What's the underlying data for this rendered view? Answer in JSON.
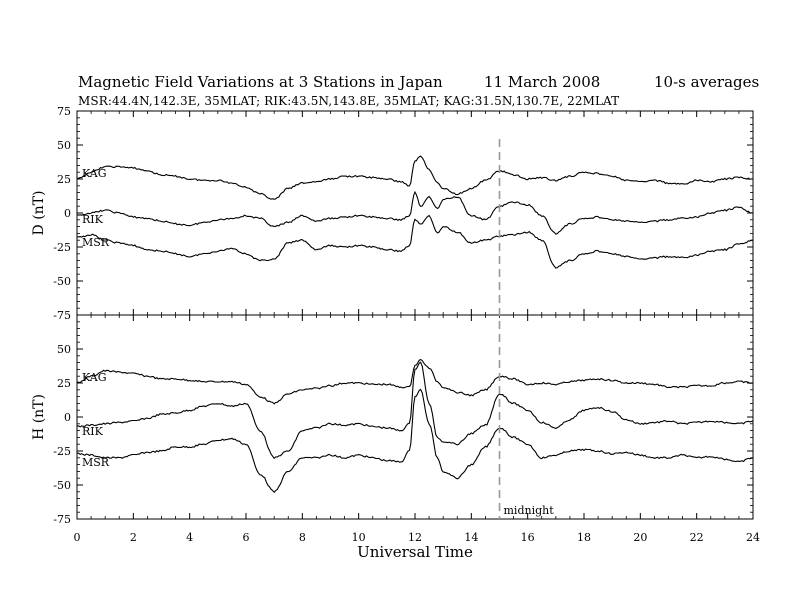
{
  "header": {
    "title": "Magnetic Field Variations at 3 Stations in Japan",
    "date": "11 March   2008",
    "averaging": "10-s averages",
    "subtitle": "MSR:44.4N,142.3E, 35MLAT;   RIK:43.5N,143.8E, 35MLAT;   KAG:31.5N,130.7E, 22MLAT"
  },
  "chart_data": {
    "type": "line",
    "xlabel": "Universal Time",
    "xlim": [
      0,
      24
    ],
    "x_ticks": [
      0,
      2,
      4,
      6,
      8,
      10,
      12,
      14,
      16,
      18,
      20,
      22,
      24
    ],
    "annotation": {
      "x": 15,
      "text": "midnight",
      "style": "dashed"
    },
    "panels": [
      {
        "name": "D",
        "ylabel": "D (nT)",
        "ylim": [
          -75,
          75
        ],
        "y_ticks": [
          75,
          50,
          25,
          0,
          -25,
          -50,
          -75
        ],
        "series": [
          {
            "name": "KAG",
            "x": [
              0,
              0.5,
              1,
              1.5,
              2,
              2.5,
              3,
              3.5,
              4,
              4.5,
              5,
              5.5,
              6,
              6.5,
              7,
              7.5,
              8,
              8.5,
              9,
              9.5,
              10,
              10.5,
              11,
              11.5,
              11.8,
              12,
              12.2,
              12.5,
              12.8,
              13,
              13.5,
              14,
              14.5,
              15,
              15.5,
              16,
              16.5,
              17,
              17.5,
              18,
              18.5,
              19,
              19.5,
              20,
              20.5,
              21,
              21.5,
              22,
              22.5,
              23,
              23.5,
              24
            ],
            "y": [
              25,
              30,
              34,
              34,
              33,
              31,
              28,
              27,
              25,
              24,
              24,
              22,
              19,
              14,
              10,
              18,
              22,
              23,
              25,
              27,
              27,
              26,
              25,
              23,
              20,
              38,
              42,
              32,
              22,
              18,
              14,
              18,
              24,
              31,
              28,
              25,
              26,
              24,
              27,
              30,
              29,
              27,
              24,
              23,
              24,
              22,
              21,
              24,
              23,
              25,
              26,
              25
            ]
          },
          {
            "name": "RIK",
            "x": [
              0,
              0.5,
              1,
              1.5,
              2,
              2.5,
              3,
              3.5,
              4,
              4.5,
              5,
              5.5,
              6,
              6.5,
              7,
              7.5,
              8,
              8.5,
              9,
              9.5,
              10,
              10.5,
              11,
              11.5,
              11.8,
              12,
              12.2,
              12.5,
              12.8,
              13,
              13.5,
              14,
              14.5,
              15,
              15.5,
              16,
              16.5,
              17,
              17.5,
              18,
              18.5,
              19,
              19.5,
              20,
              20.5,
              21,
              21.5,
              22,
              22.5,
              23,
              23.5,
              24
            ],
            "y": [
              -2,
              0,
              2,
              0,
              -3,
              -4,
              -6,
              -8,
              -9,
              -7,
              -5,
              -4,
              -2,
              -4,
              -10,
              -7,
              -2,
              -6,
              -4,
              -3,
              -2,
              -3,
              -4,
              -5,
              -2,
              15,
              5,
              12,
              3,
              10,
              12,
              -2,
              -5,
              5,
              8,
              6,
              -2,
              -15,
              -8,
              -4,
              -3,
              -5,
              -6,
              -7,
              -6,
              -5,
              -4,
              -3,
              0,
              2,
              4,
              0
            ]
          },
          {
            "name": "MSR",
            "x": [
              0,
              0.5,
              1,
              1.5,
              2,
              2.5,
              3,
              3.5,
              4,
              4.5,
              5,
              5.5,
              6,
              6.5,
              7,
              7.5,
              8,
              8.5,
              9,
              9.5,
              10,
              10.5,
              11,
              11.5,
              11.8,
              12,
              12.2,
              12.5,
              12.8,
              13,
              13.5,
              14,
              14.5,
              15,
              15.5,
              16,
              16.5,
              17,
              17.5,
              18,
              18.5,
              19,
              19.5,
              20,
              20.5,
              21,
              21.5,
              22,
              22.5,
              23,
              23.5,
              24
            ],
            "y": [
              -18,
              -16,
              -20,
              -22,
              -24,
              -27,
              -28,
              -30,
              -32,
              -30,
              -28,
              -26,
              -30,
              -35,
              -34,
              -22,
              -20,
              -27,
              -24,
              -25,
              -24,
              -25,
              -27,
              -28,
              -24,
              -5,
              -8,
              -2,
              -15,
              -10,
              -14,
              -22,
              -20,
              -17,
              -16,
              -14,
              -20,
              -40,
              -35,
              -30,
              -28,
              -30,
              -32,
              -34,
              -33,
              -32,
              -33,
              -31,
              -28,
              -27,
              -23,
              -20
            ]
          }
        ]
      },
      {
        "name": "H",
        "ylabel": "H (nT)",
        "ylim": [
          -75,
          75
        ],
        "y_ticks": [
          75,
          50,
          25,
          0,
          -25,
          -50,
          -75
        ],
        "series": [
          {
            "name": "KAG",
            "x": [
              0,
              0.5,
              1,
              1.5,
              2,
              2.5,
              3,
              3.5,
              4,
              4.5,
              5,
              5.5,
              6,
              6.5,
              7,
              7.5,
              8,
              8.5,
              9,
              9.5,
              10,
              10.5,
              11,
              11.5,
              11.8,
              12,
              12.2,
              12.5,
              12.8,
              13,
              13.5,
              14,
              14.5,
              15,
              15.5,
              16,
              16.5,
              17,
              17.5,
              18,
              18.5,
              19,
              19.5,
              20,
              20.5,
              21,
              21.5,
              22,
              22.5,
              23,
              23.5,
              24
            ],
            "y": [
              25,
              30,
              34,
              33,
              32,
              30,
              28,
              28,
              27,
              26,
              26,
              26,
              24,
              15,
              10,
              17,
              20,
              21,
              23,
              25,
              25,
              24,
              24,
              22,
              22,
              38,
              42,
              36,
              26,
              22,
              18,
              16,
              20,
              30,
              28,
              24,
              25,
              24,
              26,
              27,
              28,
              27,
              25,
              25,
              24,
              22,
              22,
              23,
              23,
              25,
              26,
              25
            ]
          },
          {
            "name": "RIK",
            "x": [
              0,
              0.5,
              1,
              1.5,
              2,
              2.5,
              3,
              3.5,
              4,
              4.5,
              5,
              5.5,
              6,
              6.5,
              7,
              7.5,
              8,
              8.5,
              9,
              9.5,
              10,
              10.5,
              11,
              11.5,
              11.8,
              12,
              12.2,
              12.5,
              12.8,
              13,
              13.5,
              14,
              14.5,
              15,
              15.5,
              16,
              16.5,
              17,
              17.5,
              18,
              18.5,
              19,
              19.5,
              20,
              20.5,
              21,
              21.5,
              22,
              22.5,
              23,
              23.5,
              24
            ],
            "y": [
              -7,
              -6,
              -5,
              -4,
              -3,
              -1,
              2,
              3,
              5,
              8,
              10,
              8,
              10,
              -10,
              -30,
              -25,
              -10,
              -8,
              -5,
              -6,
              -5,
              -7,
              -8,
              -10,
              -5,
              35,
              40,
              10,
              -15,
              -18,
              -20,
              -12,
              -6,
              17,
              10,
              5,
              -4,
              -8,
              -2,
              5,
              7,
              4,
              -2,
              -5,
              -4,
              -3,
              -5,
              -4,
              -3,
              -4,
              -5,
              -3
            ]
          },
          {
            "name": "MSR",
            "x": [
              0,
              0.5,
              1,
              1.5,
              2,
              2.5,
              3,
              3.5,
              4,
              4.5,
              5,
              5.5,
              6,
              6.5,
              7,
              7.5,
              8,
              8.5,
              9,
              9.5,
              10,
              10.5,
              11,
              11.5,
              11.8,
              12,
              12.2,
              12.5,
              12.8,
              13,
              13.5,
              14,
              14.5,
              15,
              15.5,
              16,
              16.5,
              17,
              17.5,
              18,
              18.5,
              19,
              19.5,
              20,
              20.5,
              21,
              21.5,
              22,
              22.5,
              23,
              23.5,
              24
            ],
            "y": [
              -27,
              -28,
              -30,
              -30,
              -28,
              -26,
              -25,
              -22,
              -22,
              -20,
              -17,
              -16,
              -20,
              -42,
              -55,
              -40,
              -30,
              -30,
              -28,
              -30,
              -28,
              -30,
              -32,
              -33,
              -25,
              15,
              20,
              -5,
              -30,
              -40,
              -45,
              -35,
              -22,
              -8,
              -15,
              -20,
              -30,
              -28,
              -25,
              -24,
              -25,
              -27,
              -26,
              -28,
              -30,
              -30,
              -28,
              -30,
              -29,
              -31,
              -33,
              -30
            ]
          }
        ]
      }
    ]
  }
}
